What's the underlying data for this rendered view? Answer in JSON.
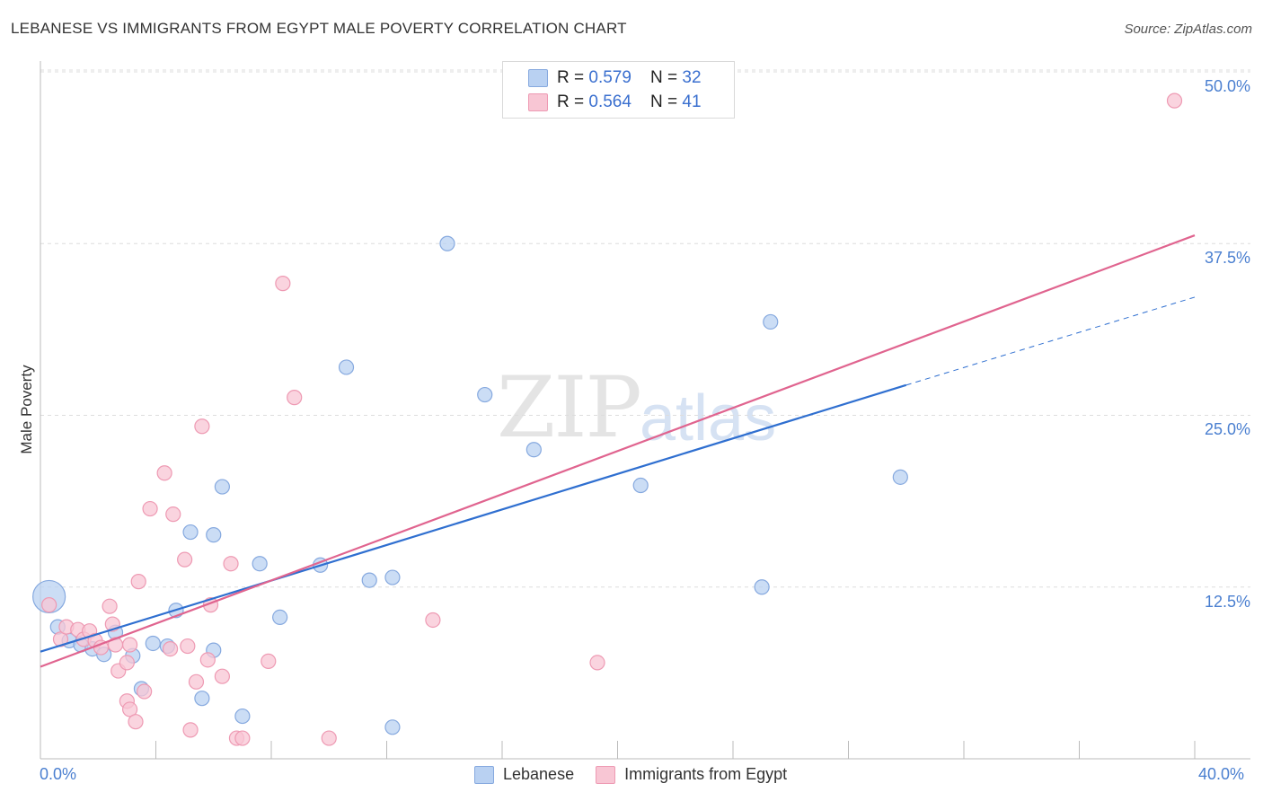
{
  "title": "LEBANESE VS IMMIGRANTS FROM EGYPT MALE POVERTY CORRELATION CHART",
  "source": "Source: ZipAtlas.com",
  "watermark": {
    "a": "ZIP",
    "b": "atlas"
  },
  "colors": {
    "lebanese_fill": "#b9d1f2",
    "lebanese_stroke": "#86a9df",
    "lebanese_line": "#2f6fd0",
    "egypt_fill": "#f8c6d4",
    "egypt_stroke": "#ee9ab3",
    "egypt_line": "#e0648f",
    "grid": "#dddddd",
    "tick_label": "#4a7fd0"
  },
  "legend_top": {
    "rows": [
      {
        "r_label": "R = ",
        "r_value": "0.579",
        "n_label": "N = ",
        "n_value": "32"
      },
      {
        "r_label": "R = ",
        "r_value": "0.564",
        "n_label": "N = ",
        "n_value": "41"
      }
    ]
  },
  "legend_bottom": {
    "series1": "Lebanese",
    "series2": "Immigrants from Egypt"
  },
  "chart_data": {
    "type": "scatter",
    "title": "LEBANESE VS IMMIGRANTS FROM EGYPT MALE POVERTY CORRELATION CHART",
    "xlabel": "",
    "ylabel": "Male Poverty",
    "xlim": [
      0,
      40
    ],
    "ylim": [
      0,
      50
    ],
    "x_tick_labels": [
      "0.0%",
      "40.0%"
    ],
    "y_ticks": [
      12.5,
      25.0,
      37.5,
      50.0
    ],
    "y_tick_labels": [
      "12.5%",
      "25.0%",
      "37.5%",
      "50.0%"
    ],
    "grid": "horizontal dashed",
    "legend_placement": "top-center",
    "series": [
      {
        "name": "Lebanese",
        "points": [
          [
            0.3,
            11.8
          ],
          [
            0.6,
            9.6
          ],
          [
            1.0,
            8.6
          ],
          [
            1.4,
            8.3
          ],
          [
            1.8,
            8.0
          ],
          [
            2.2,
            7.6
          ],
          [
            2.6,
            9.2
          ],
          [
            3.2,
            7.5
          ],
          [
            3.5,
            5.1
          ],
          [
            3.9,
            8.4
          ],
          [
            4.4,
            8.2
          ],
          [
            4.7,
            10.8
          ],
          [
            5.2,
            16.5
          ],
          [
            5.6,
            4.4
          ],
          [
            6.0,
            7.9
          ],
          [
            6.0,
            16.3
          ],
          [
            6.3,
            19.8
          ],
          [
            7.0,
            3.1
          ],
          [
            7.6,
            14.2
          ],
          [
            8.3,
            10.3
          ],
          [
            9.7,
            14.1
          ],
          [
            10.6,
            28.5
          ],
          [
            11.4,
            13.0
          ],
          [
            12.2,
            2.3
          ],
          [
            12.2,
            13.2
          ],
          [
            14.1,
            37.5
          ],
          [
            15.4,
            26.5
          ],
          [
            17.1,
            22.5
          ],
          [
            20.8,
            19.9
          ],
          [
            25.0,
            12.5
          ],
          [
            25.3,
            31.8
          ],
          [
            29.8,
            20.5
          ]
        ],
        "trend": {
          "x": [
            0,
            30.0
          ],
          "y": [
            7.8,
            27.2
          ],
          "dashed_extension": {
            "x": [
              30.0,
              40.0
            ],
            "y": [
              27.2,
              33.6
            ]
          }
        }
      },
      {
        "name": "Immigrants from Egypt",
        "points": [
          [
            0.3,
            11.2
          ],
          [
            0.7,
            8.7
          ],
          [
            0.9,
            9.6
          ],
          [
            1.3,
            9.4
          ],
          [
            1.5,
            8.7
          ],
          [
            1.7,
            9.3
          ],
          [
            1.9,
            8.6
          ],
          [
            2.1,
            8.1
          ],
          [
            2.4,
            11.1
          ],
          [
            2.5,
            9.8
          ],
          [
            2.7,
            6.4
          ],
          [
            2.6,
            8.3
          ],
          [
            3.1,
            8.3
          ],
          [
            3.0,
            7.0
          ],
          [
            3.0,
            4.2
          ],
          [
            3.1,
            3.6
          ],
          [
            3.3,
            2.7
          ],
          [
            3.4,
            12.9
          ],
          [
            3.6,
            4.9
          ],
          [
            3.8,
            18.2
          ],
          [
            4.3,
            20.8
          ],
          [
            4.5,
            8.0
          ],
          [
            4.6,
            17.8
          ],
          [
            5.0,
            14.5
          ],
          [
            5.1,
            8.2
          ],
          [
            5.2,
            2.1
          ],
          [
            5.4,
            5.6
          ],
          [
            5.6,
            24.2
          ],
          [
            5.8,
            7.2
          ],
          [
            5.9,
            11.2
          ],
          [
            6.3,
            6.0
          ],
          [
            6.6,
            14.2
          ],
          [
            6.8,
            1.5
          ],
          [
            7.0,
            1.5
          ],
          [
            7.9,
            7.1
          ],
          [
            8.4,
            34.6
          ],
          [
            8.8,
            26.3
          ],
          [
            10.0,
            1.5
          ],
          [
            13.6,
            10.1
          ],
          [
            19.3,
            7.0
          ],
          [
            39.3,
            47.9
          ]
        ],
        "trend": {
          "x": [
            0,
            40.0
          ],
          "y": [
            6.7,
            38.1
          ]
        }
      }
    ]
  }
}
